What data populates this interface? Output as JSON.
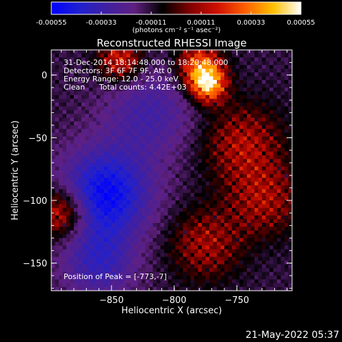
{
  "chart_data": {
    "type": "heatmap",
    "title": "Reconstructed RHESSI Image",
    "xlabel": "Heliocentric X (arcsec)",
    "ylabel": "Heliocentric Y (arcsec)",
    "xlim": [
      -898,
      -706
    ],
    "ylim": [
      -172,
      20
    ],
    "x_ticks": [
      -850,
      -800,
      -750
    ],
    "y_ticks": [
      0,
      -50,
      -100,
      -150
    ],
    "colorbar": {
      "min": -0.00055,
      "max": 0.00055,
      "ticks": [
        "-0.00055",
        "-0.00033",
        "-0.00011",
        "0.00011",
        "0.00033",
        "0.00055"
      ],
      "unit_label": "(photons cm⁻² s⁻¹ asec⁻²)",
      "stops": [
        "#0000ff",
        "#2020d0",
        "#4020a0",
        "#602080",
        "#000000",
        "#800000",
        "#d01000",
        "#ff6000",
        "#ffc000",
        "#ffffff"
      ]
    },
    "annotations": {
      "time_range": "31-Dec-2014 18:14:48.000 to 18:20:48.000",
      "detectors": "Detectors: 3F 6F 7F 9F, Att 0",
      "energy_range": "Energy Range: 12.0 - 25.0 keV",
      "clean": "Clean",
      "total_counts": "Total counts: 4.42E+03",
      "peak_position": "Position of Peak = [-773,-7]"
    },
    "sources": [
      {
        "x": -773,
        "y": -7,
        "peak": 0.00055,
        "sigma": 10
      },
      {
        "x": -780,
        "y": 8,
        "peak": 0.00038,
        "sigma": 12
      },
      {
        "x": -843,
        "y": 12,
        "peak": 0.00032,
        "sigma": 12
      },
      {
        "x": -890,
        "y": -110,
        "peak": 0.00034,
        "sigma": 14
      },
      {
        "x": -745,
        "y": -55,
        "peak": 0.00024,
        "sigma": 22
      },
      {
        "x": -728,
        "y": -100,
        "peak": 0.00022,
        "sigma": 20
      },
      {
        "x": -775,
        "y": -135,
        "peak": 0.00022,
        "sigma": 20
      },
      {
        "x": -855,
        "y": -95,
        "peak": -0.0004,
        "sigma": 25
      },
      {
        "x": -820,
        "y": -30,
        "peak": -0.00018,
        "sigma": 25
      },
      {
        "x": -860,
        "y": -150,
        "peak": -0.00022,
        "sigma": 20
      }
    ]
  },
  "footer": {
    "timestamp": "21-May-2022 05:37"
  }
}
